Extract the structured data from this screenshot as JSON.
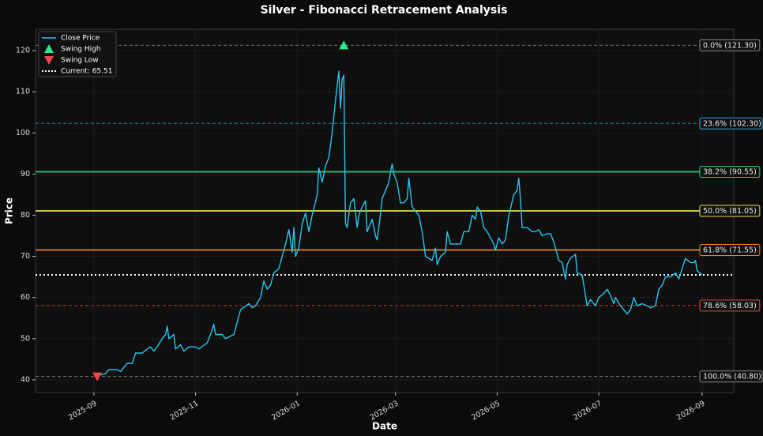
{
  "chart_data": {
    "type": "line",
    "title": "Silver - Fibonacci Retracement Analysis",
    "x_label": "Date",
    "y_label": "Price",
    "xlim": [
      "2025-07-28",
      "2026-09-20"
    ],
    "ylim": [
      36.9,
      125.2
    ],
    "xticks": [
      {
        "value": "2025-09-01",
        "label": "2025-09"
      },
      {
        "value": "2025-11-01",
        "label": "2025-11"
      },
      {
        "value": "2026-01-01",
        "label": "2026-01"
      },
      {
        "value": "2026-03-01",
        "label": "2026-03"
      },
      {
        "value": "2026-05-01",
        "label": "2026-05"
      },
      {
        "value": "2026-07-01",
        "label": "2026-07"
      },
      {
        "value": "2026-09-01",
        "label": "2026-09"
      }
    ],
    "yticks": [
      40,
      50,
      60,
      70,
      80,
      90,
      100,
      110,
      120
    ],
    "grid": true,
    "legend": "upper left",
    "x": [
      "2025-09-03",
      "2025-09-08",
      "2025-09-10",
      "2025-09-15",
      "2025-09-17",
      "2025-09-21",
      "2025-09-24",
      "2025-09-26",
      "2025-09-30",
      "2025-10-03",
      "2025-10-05",
      "2025-10-07",
      "2025-10-09",
      "2025-10-12",
      "2025-10-14",
      "2025-10-15",
      "2025-10-16",
      "2025-10-19",
      "2025-10-20",
      "2025-10-23",
      "2025-10-25",
      "2025-10-28",
      "2025-11-01",
      "2025-11-03",
      "2025-11-08",
      "2025-11-10",
      "2025-11-12",
      "2025-11-13",
      "2025-11-17",
      "2025-11-19",
      "2025-11-24",
      "2025-11-26",
      "2025-11-28",
      "2025-12-03",
      "2025-12-05",
      "2025-12-07",
      "2025-12-10",
      "2025-12-12",
      "2025-12-14",
      "2025-12-16",
      "2025-12-18",
      "2025-12-21",
      "2025-12-23",
      "2025-12-25",
      "2025-12-27",
      "2025-12-29",
      "2025-12-30",
      "2025-12-31",
      "2026-01-02",
      "2026-01-04",
      "2026-01-06",
      "2026-01-08",
      "2026-01-10",
      "2026-01-13",
      "2026-01-14",
      "2026-01-16",
      "2026-01-18",
      "2026-01-20",
      "2026-01-22",
      "2026-01-24",
      "2026-01-26",
      "2026-01-27",
      "2026-01-28",
      "2026-01-29",
      "2026-01-30",
      "2026-01-31",
      "2026-02-02",
      "2026-02-04",
      "2026-02-06",
      "2026-02-07",
      "2026-02-09",
      "2026-02-11",
      "2026-02-12",
      "2026-02-15",
      "2026-02-17",
      "2026-02-18",
      "2026-02-19",
      "2026-02-21",
      "2026-02-23",
      "2026-02-25",
      "2026-02-26",
      "2026-02-27",
      "2026-02-28",
      "2026-03-02",
      "2026-03-04",
      "2026-03-06",
      "2026-03-08",
      "2026-03-09",
      "2026-03-11",
      "2026-03-13",
      "2026-03-15",
      "2026-03-17",
      "2026-03-19",
      "2026-03-23",
      "2026-03-25",
      "2026-03-26",
      "2026-03-28",
      "2026-03-31",
      "2026-04-01",
      "2026-04-03",
      "2026-04-06",
      "2026-04-09",
      "2026-04-11",
      "2026-04-14",
      "2026-04-16",
      "2026-04-18",
      "2026-04-19",
      "2026-04-21",
      "2026-04-23",
      "2026-04-25",
      "2026-04-27",
      "2026-04-29",
      "2026-04-30",
      "2026-05-02",
      "2026-05-04",
      "2026-05-06",
      "2026-05-08",
      "2026-05-11",
      "2026-05-13",
      "2026-05-14",
      "2026-05-15",
      "2026-05-16",
      "2026-05-19",
      "2026-05-22",
      "2026-05-24",
      "2026-05-26",
      "2026-05-28",
      "2026-05-31",
      "2026-06-02",
      "2026-06-04",
      "2026-06-07",
      "2026-06-09",
      "2026-06-11",
      "2026-06-12",
      "2026-06-14",
      "2026-06-17",
      "2026-06-18",
      "2026-06-21",
      "2026-06-24",
      "2026-06-26",
      "2026-06-29",
      "2026-07-01",
      "2026-07-04",
      "2026-07-06",
      "2026-07-08",
      "2026-07-10",
      "2026-07-11",
      "2026-07-14",
      "2026-07-16",
      "2026-07-18",
      "2026-07-20",
      "2026-07-22",
      "2026-07-24",
      "2026-07-27",
      "2026-07-30",
      "2026-08-01",
      "2026-08-04",
      "2026-08-06",
      "2026-08-08",
      "2026-08-10",
      "2026-08-13",
      "2026-08-16",
      "2026-08-18",
      "2026-08-20",
      "2026-08-22",
      "2026-08-25",
      "2026-08-27",
      "2026-08-28",
      "2026-08-29",
      "2026-09-01"
    ],
    "series": [
      {
        "name": "Close Price",
        "color": "#27c4f0",
        "values": [
          41,
          41.5,
          42.5,
          42.5,
          42,
          44,
          44,
          46.5,
          46.5,
          47.5,
          48,
          47,
          48,
          50,
          51,
          53,
          50,
          51,
          47.5,
          48.5,
          47,
          48,
          48,
          47.5,
          49,
          51,
          53.5,
          51,
          51,
          50,
          51,
          54,
          57,
          58.5,
          57.5,
          58,
          60,
          64,
          62,
          63,
          66,
          67,
          70,
          73,
          76.5,
          71,
          77,
          70,
          72,
          78,
          80.5,
          76,
          80,
          85,
          91.5,
          88,
          92,
          94,
          100,
          108,
          115,
          106,
          113,
          114,
          78,
          77,
          83,
          84,
          77,
          80,
          82,
          83.5,
          76,
          79,
          75,
          74,
          77,
          84,
          86,
          88,
          90.5,
          92.5,
          90,
          88,
          83,
          83,
          84,
          89,
          82,
          81,
          80,
          76,
          70,
          69,
          72,
          68,
          70,
          71,
          76,
          73,
          73,
          73,
          76,
          76,
          80,
          79,
          82,
          81,
          77,
          76,
          74.5,
          73,
          71.5,
          74.5,
          73,
          74,
          80,
          85,
          86,
          89,
          84,
          77,
          77,
          76,
          76,
          76.5,
          75,
          75.5,
          75.5,
          73.5,
          69,
          68.5,
          64.5,
          68,
          69.5,
          70.5,
          66,
          65.5,
          58,
          59.5,
          58,
          60,
          61,
          62,
          60.5,
          58.5,
          60,
          58,
          57,
          56,
          57,
          60,
          58,
          58.5,
          58,
          57.5,
          58,
          62,
          63,
          65,
          65,
          66,
          64.5,
          67,
          69.5,
          68.5,
          68.5,
          69,
          66.5,
          65.51
        ]
      }
    ],
    "swing_high": {
      "name": "Swing High",
      "x": "2026-01-29",
      "value": 121.3,
      "color": "#2ee88a"
    },
    "swing_low": {
      "name": "Swing Low",
      "x": "2025-09-03",
      "value": 40.8,
      "color": "#e84a4a"
    },
    "current": {
      "name": "Current: 65.51",
      "value": 65.51,
      "color": "#ffffff"
    },
    "fib_levels": [
      {
        "label": "0.0% (121.30)",
        "value": 121.3,
        "color": "#8a8a8a",
        "dashed": true
      },
      {
        "label": "23.6% (102.30)",
        "value": 102.3,
        "color": "#2aa6d8",
        "dashed": true
      },
      {
        "label": "38.2% (90.55)",
        "value": 90.55,
        "color": "#2ecc71",
        "dashed": false
      },
      {
        "label": "50.0% (81.05)",
        "value": 81.05,
        "color": "#e6dc4a",
        "dashed": false
      },
      {
        "label": "61.8% (71.55)",
        "value": 71.55,
        "color": "#e6842a",
        "dashed": false
      },
      {
        "label": "78.6% (58.03)",
        "value": 58.03,
        "color": "#e04a40",
        "dashed": true
      },
      {
        "label": "100.0% (40.80)",
        "value": 40.8,
        "color": "#8a8a8a",
        "dashed": true
      }
    ]
  }
}
